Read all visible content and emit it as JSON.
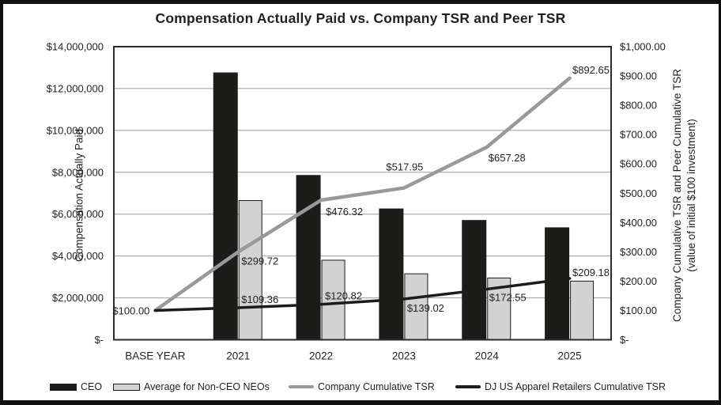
{
  "chart_data": {
    "type": "combo-bar-line",
    "title": "Compensation Actually Paid vs. Company TSR and Peer TSR",
    "categories": [
      "BASE YEAR",
      "2021",
      "2022",
      "2023",
      "2024",
      "2025"
    ],
    "left_axis": {
      "title": "Compensation Actually Paid",
      "max": 14000000,
      "ticks": [
        "$14,000,000",
        "$12,000,000",
        "$10,000,000",
        "$8,000,000",
        "$6,000,000",
        "$4,000,000",
        "$2,000,000",
        "$-"
      ],
      "tick_values": [
        14000000,
        12000000,
        10000000,
        8000000,
        6000000,
        4000000,
        2000000,
        0
      ],
      "gridline_values": [
        12000000,
        10000000,
        8000000,
        6000000,
        4000000,
        2000000
      ]
    },
    "right_axis": {
      "title_line1": "Company Cumulative TSR and Peer Cumulative TSR",
      "title_line2": "(value of initial $100 investment)",
      "max": 1000,
      "ticks": [
        "$1,000.00",
        "$900.00",
        "$800.00",
        "$700.00",
        "$600.00",
        "$500.00",
        "$400.00",
        "$300.00",
        "$200.00",
        "$100.00",
        "$-"
      ],
      "tick_values": [
        1000,
        900,
        800,
        700,
        600,
        500,
        400,
        300,
        200,
        100,
        0
      ]
    },
    "bar_series": [
      {
        "name": "CEO",
        "axis": "left",
        "fill": "#1c1c1a",
        "stroke": "#1c1c1a",
        "values": [
          null,
          12750000,
          7850000,
          6250000,
          5700000,
          5350000
        ]
      },
      {
        "name": "Average for Non-CEO NEOs",
        "axis": "left",
        "fill": "#d2d2d3",
        "stroke": "#1c1c1a",
        "values": [
          null,
          6650000,
          3800000,
          3150000,
          2950000,
          2800000
        ]
      }
    ],
    "line_series": [
      {
        "name": "Company Cumulative TSR",
        "axis": "right",
        "color": "#98999b",
        "width": 4.5,
        "values": [
          100.0,
          299.72,
          476.32,
          517.95,
          657.28,
          892.65
        ],
        "point_labels": [
          "$100.00",
          "$299.72",
          "$476.32",
          "$517.95",
          "$657.28",
          "$892.65"
        ]
      },
      {
        "name": "DJ US Apparel Retailers Cumulative TSR",
        "axis": "right",
        "color": "#1c1c1a",
        "width": 3.5,
        "values": [
          100.0,
          109.36,
          120.82,
          139.02,
          172.55,
          209.18
        ],
        "point_labels": [
          null,
          "$109.36",
          "$120.82",
          "$139.02",
          "$172.55",
          "$209.18"
        ]
      }
    ],
    "colors": {
      "text": "#231f20",
      "gridline": "#9b9b9b",
      "plot_border": "#2b2b2b",
      "frame": "#111111"
    }
  }
}
